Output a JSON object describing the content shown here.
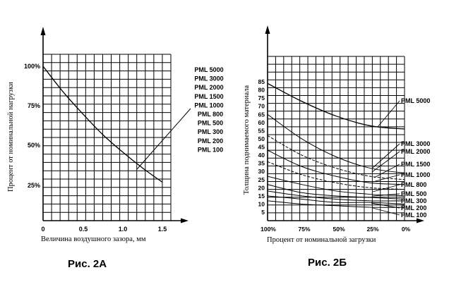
{
  "captions": {
    "a": "Рис. 2А",
    "b": "Рис. 2Б"
  },
  "chart_data": [
    {
      "type": "line",
      "xlabel": "Величина воздушного зазора, мм",
      "ylabel": "Процент от номинальной нагрузки",
      "x_ticks": [
        "0",
        "0.5",
        "1.0",
        "1.5"
      ],
      "y_ticks": [
        "100%",
        "75%",
        "50%",
        "25%"
      ],
      "xlim": [
        0,
        1.5
      ],
      "ylim": [
        0,
        110
      ],
      "grid": true,
      "series": [
        {
          "x": [
            0,
            0.25,
            0.5,
            0.75,
            1.0,
            1.25,
            1.5
          ],
          "y": [
            100,
            84,
            70,
            57,
            46,
            36,
            27
          ]
        }
      ],
      "legend_entries": [
        "PML 5000",
        "PML 3000",
        "PML 2000",
        "PML 1500",
        "PML 1000",
        "PML 800",
        "PML 500",
        "PML 300",
        "PML 200",
        "PML 100"
      ]
    },
    {
      "type": "line",
      "xlabel": "Процент от номинальной загрузки",
      "ylabel": "Толщина поднимаемого материала",
      "x_ticks": [
        "100%",
        "75%",
        "50%",
        "25%",
        "0%"
      ],
      "y_ticks": [
        "85",
        "80",
        "75",
        "70",
        "65",
        "60",
        "55",
        "50",
        "45",
        "40",
        "35",
        "30",
        "25",
        "20",
        "15",
        "10",
        "5"
      ],
      "xlim": [
        100,
        0
      ],
      "ylim": [
        0,
        90
      ],
      "grid": true,
      "series": [
        {
          "name": "PML 5000",
          "x": [
            100,
            75,
            50,
            25,
            0
          ],
          "y": [
            84,
            73,
            64,
            58,
            56
          ]
        },
        {
          "name": "PML 3000",
          "x": [
            100,
            75,
            50,
            25,
            0
          ],
          "y": [
            65,
            50,
            39,
            32,
            29
          ]
        },
        {
          "name": "PML 2000",
          "x": [
            100,
            75,
            50,
            25,
            0
          ],
          "y": [
            52,
            40,
            32,
            27,
            25
          ]
        },
        {
          "name": "PML 1500",
          "x": [
            100,
            75,
            50,
            25,
            0
          ],
          "y": [
            43,
            33,
            27,
            23,
            22
          ]
        },
        {
          "name": "PML 1000",
          "x": [
            100,
            75,
            50,
            25,
            0
          ],
          "y": [
            36,
            28,
            23,
            20,
            19
          ]
        },
        {
          "name": "PML 800",
          "x": [
            100,
            75,
            50,
            25,
            0
          ],
          "y": [
            27,
            22,
            18,
            16,
            15
          ]
        },
        {
          "name": "PML 500",
          "x": [
            100,
            75,
            50,
            25,
            0
          ],
          "y": [
            22,
            17,
            15,
            14,
            13
          ]
        },
        {
          "name": "PML 300",
          "x": [
            100,
            75,
            50,
            25,
            0
          ],
          "y": [
            18,
            15,
            13,
            12,
            12
          ]
        },
        {
          "name": "PML 200",
          "x": [
            100,
            75,
            50,
            25,
            0
          ],
          "y": [
            15,
            13,
            11,
            11,
            10
          ]
        },
        {
          "name": "PML 100",
          "x": [
            100,
            75,
            50,
            25,
            0
          ],
          "y": [
            12,
            10,
            9,
            8,
            8
          ]
        }
      ]
    }
  ]
}
